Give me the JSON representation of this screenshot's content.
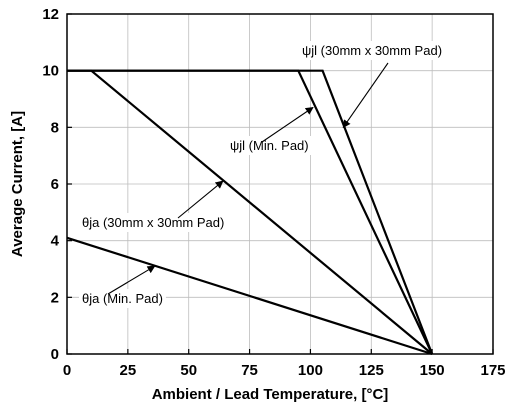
{
  "chart_data": {
    "type": "line",
    "title": "",
    "xlabel": "Ambient / Lead Temperature, [°C]",
    "ylabel": "Average Current, [A]",
    "xlim": [
      0,
      175
    ],
    "ylim": [
      0,
      12
    ],
    "xticks": [
      0,
      25,
      50,
      75,
      100,
      125,
      150,
      175
    ],
    "yticks": [
      0,
      2,
      4,
      6,
      8,
      10,
      12
    ],
    "grid": true,
    "legend": "none",
    "line_color": "#000000",
    "series": [
      {
        "x": [
          0,
          150
        ],
        "y": [
          4.1,
          0
        ]
      },
      {
        "x": [
          0,
          10,
          150
        ],
        "y": [
          10,
          10,
          0
        ]
      },
      {
        "x": [
          0,
          95,
          150
        ],
        "y": [
          10,
          10,
          0
        ]
      },
      {
        "x": [
          0,
          105,
          150
        ],
        "y": [
          10,
          10,
          0
        ]
      }
    ],
    "annotations": [
      {
        "label": "ψjl (30mm x 30mm Pad)",
        "point_to": [
          113.5,
          8.0
        ]
      },
      {
        "label": "ψjl (Min. Pad)",
        "point_to": [
          101.0,
          8.7
        ]
      },
      {
        "label": "θja (30mm x 30mm Pad)",
        "point_to": [
          64.0,
          6.1
        ]
      },
      {
        "label": "θja (Min. Pad)",
        "point_to": [
          36.0,
          3.1
        ]
      }
    ]
  }
}
